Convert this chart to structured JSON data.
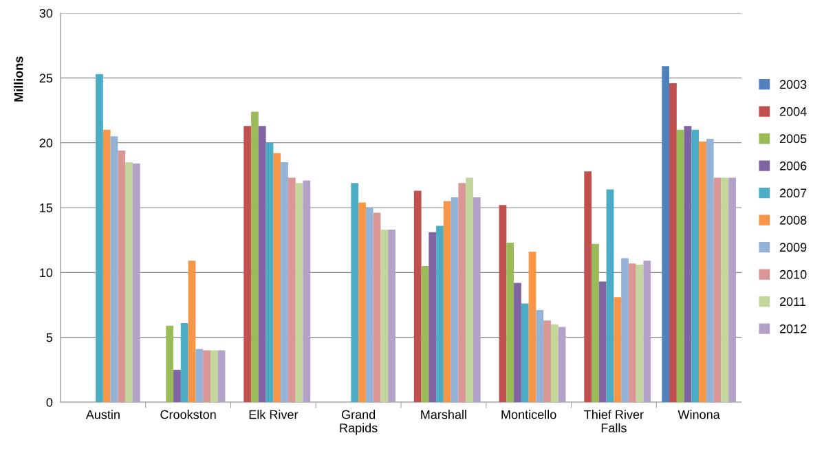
{
  "chart_data": {
    "type": "bar",
    "ylabel": "Millions",
    "categories": [
      "Austin",
      "Crookston",
      "Elk River",
      "Grand\nRapids",
      "Marshall",
      "Monticello",
      "Thief River\nFalls",
      "Winona"
    ],
    "series": [
      {
        "name": "2003",
        "color": "#4f81bd",
        "values": [
          null,
          null,
          null,
          null,
          null,
          null,
          null,
          25.9
        ]
      },
      {
        "name": "2004",
        "color": "#c0504d",
        "values": [
          null,
          null,
          21.3,
          null,
          16.3,
          15.2,
          17.8,
          24.6
        ]
      },
      {
        "name": "2005",
        "color": "#9bbb59",
        "values": [
          null,
          5.9,
          22.4,
          null,
          10.5,
          12.3,
          12.2,
          21.0
        ]
      },
      {
        "name": "2006",
        "color": "#8064a2",
        "values": [
          null,
          2.5,
          21.3,
          null,
          13.1,
          9.2,
          9.3,
          21.3
        ]
      },
      {
        "name": "2007",
        "color": "#4bacc6",
        "values": [
          25.3,
          6.1,
          20.0,
          16.9,
          13.6,
          7.6,
          16.4,
          21.0
        ]
      },
      {
        "name": "2008",
        "color": "#f79646",
        "values": [
          21.0,
          10.9,
          19.2,
          15.4,
          15.5,
          11.6,
          8.1,
          20.1
        ]
      },
      {
        "name": "2009",
        "color": "#95b3d7",
        "values": [
          20.5,
          4.1,
          18.5,
          15.0,
          15.8,
          7.1,
          11.1,
          20.3
        ]
      },
      {
        "name": "2010",
        "color": "#d99694",
        "values": [
          19.4,
          4.0,
          17.3,
          14.6,
          16.9,
          6.3,
          10.7,
          17.3
        ]
      },
      {
        "name": "2011",
        "color": "#c3d69b",
        "values": [
          18.5,
          4.0,
          16.9,
          13.3,
          17.3,
          6.0,
          10.6,
          17.3
        ]
      },
      {
        "name": "2012",
        "color": "#b3a2c7",
        "values": [
          18.4,
          4.0,
          17.1,
          13.3,
          15.8,
          5.8,
          10.9,
          17.3
        ]
      }
    ],
    "ylim": [
      0,
      30
    ],
    "yticks": [
      0,
      5,
      10,
      15,
      20,
      25,
      30
    ],
    "grid": "y",
    "legend": "right"
  }
}
